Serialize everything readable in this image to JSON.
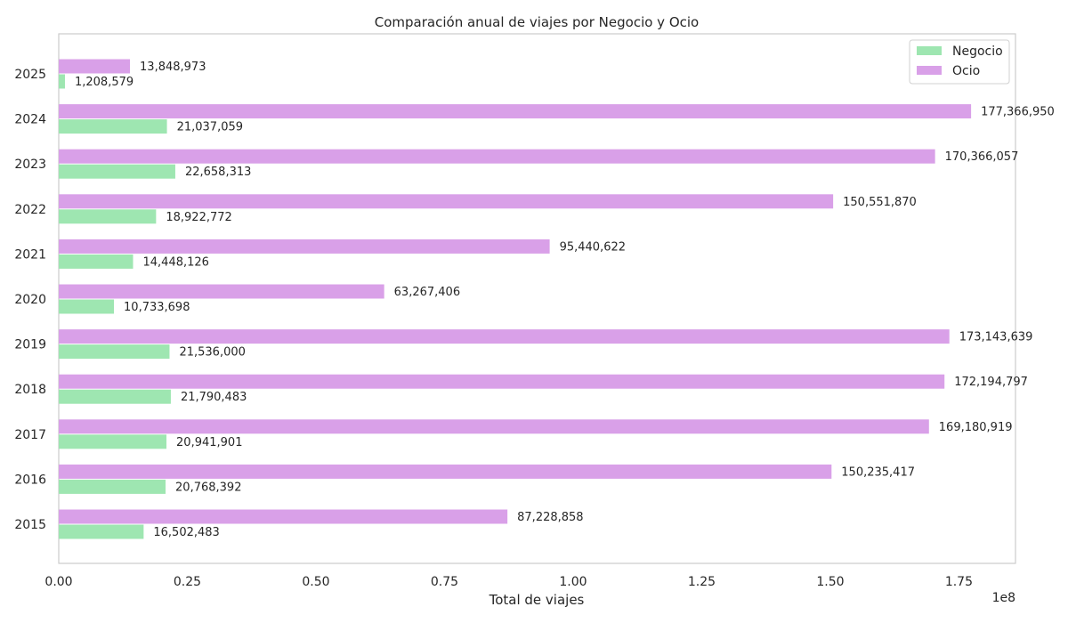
{
  "chart_data": {
    "type": "bar",
    "orientation": "horizontal",
    "title": "Comparación anual de viajes por Negocio y Ocio",
    "xlabel": "Total de viajes",
    "ylabel": "",
    "x_offset_label": "1e8",
    "xlim": [
      0,
      186000000
    ],
    "x_ticks": [
      0,
      25000000,
      50000000,
      75000000,
      100000000,
      125000000,
      150000000,
      175000000
    ],
    "x_tick_labels": [
      "0.00",
      "0.25",
      "0.50",
      "0.75",
      "1.00",
      "1.25",
      "1.50",
      "1.75"
    ],
    "categories": [
      "2015",
      "2016",
      "2017",
      "2018",
      "2019",
      "2020",
      "2021",
      "2022",
      "2023",
      "2024",
      "2025"
    ],
    "series": [
      {
        "name": "Negocio",
        "color": "#9ee6b1",
        "values": [
          16502483,
          20768392,
          20941901,
          21790483,
          21536000,
          10733698,
          14448126,
          18922772,
          22658313,
          21037059,
          1208579
        ],
        "labels": [
          "16,502,483",
          "20,768,392",
          "20,941,901",
          "21,790,483",
          "21,536,000",
          "10,733,698",
          "14,448,126",
          "18,922,772",
          "22,658,313",
          "21,037,059",
          "1,208,579"
        ]
      },
      {
        "name": "Ocio",
        "color": "#d9a0e8",
        "values": [
          87228858,
          150235417,
          169180919,
          172194797,
          173143639,
          63267406,
          95440622,
          150551870,
          170366057,
          177366950,
          13848973
        ],
        "labels": [
          "87,228,858",
          "150,235,417",
          "169,180,919",
          "172,194,797",
          "173,143,639",
          "63,267,406",
          "95,440,622",
          "150,551,870",
          "170,366,057",
          "177,366,950",
          "13,848,973"
        ]
      }
    ],
    "grid": false,
    "legend_position": "top-right"
  }
}
